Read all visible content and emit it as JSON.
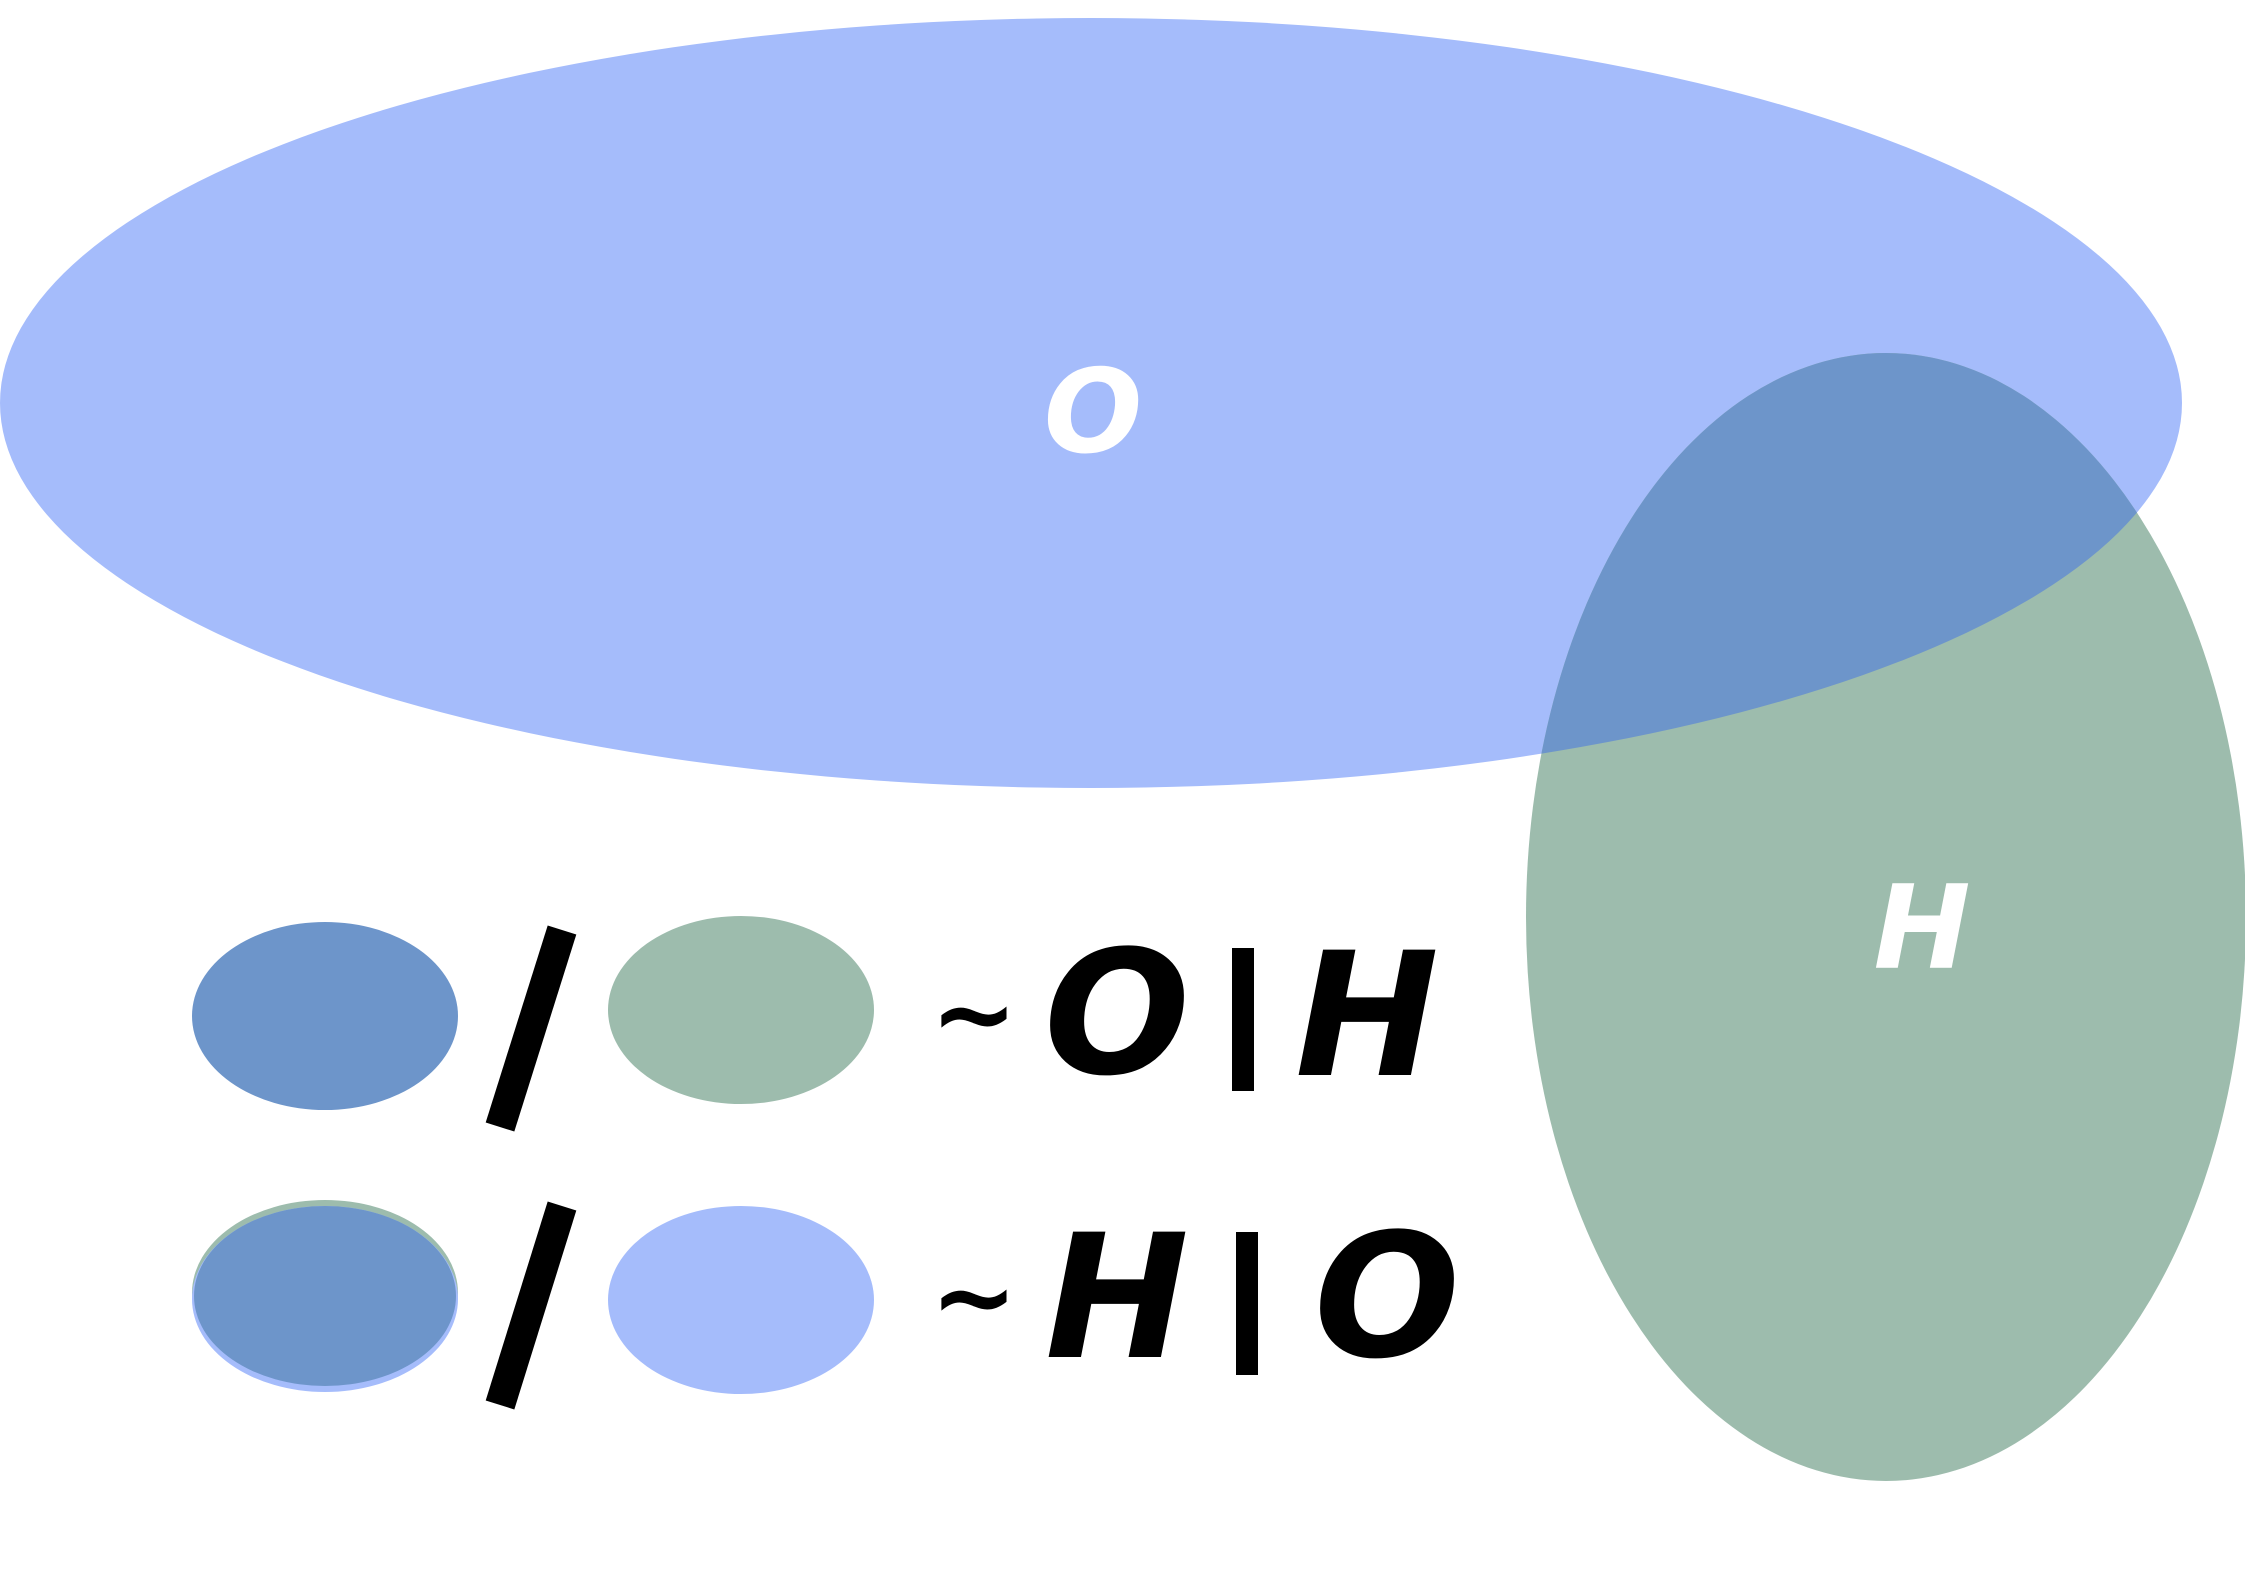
{
  "colors": {
    "set_o": "#a5bcfb",
    "set_h": "#9dbcad",
    "intersection": "#6d95ca",
    "label_on_sets": "#ffffff",
    "formula_text": "#000000"
  },
  "sets": {
    "o": {
      "label": "O"
    },
    "h": {
      "label": "H"
    }
  },
  "formulas": [
    {
      "numerator": "intersection",
      "denominator": "set_h",
      "similar": "~",
      "left": "O",
      "bar": "|",
      "right": "H"
    },
    {
      "numerator": "intersection",
      "denominator": "set_o",
      "similar": "~",
      "left": "H",
      "bar": "|",
      "right": "O"
    }
  ]
}
